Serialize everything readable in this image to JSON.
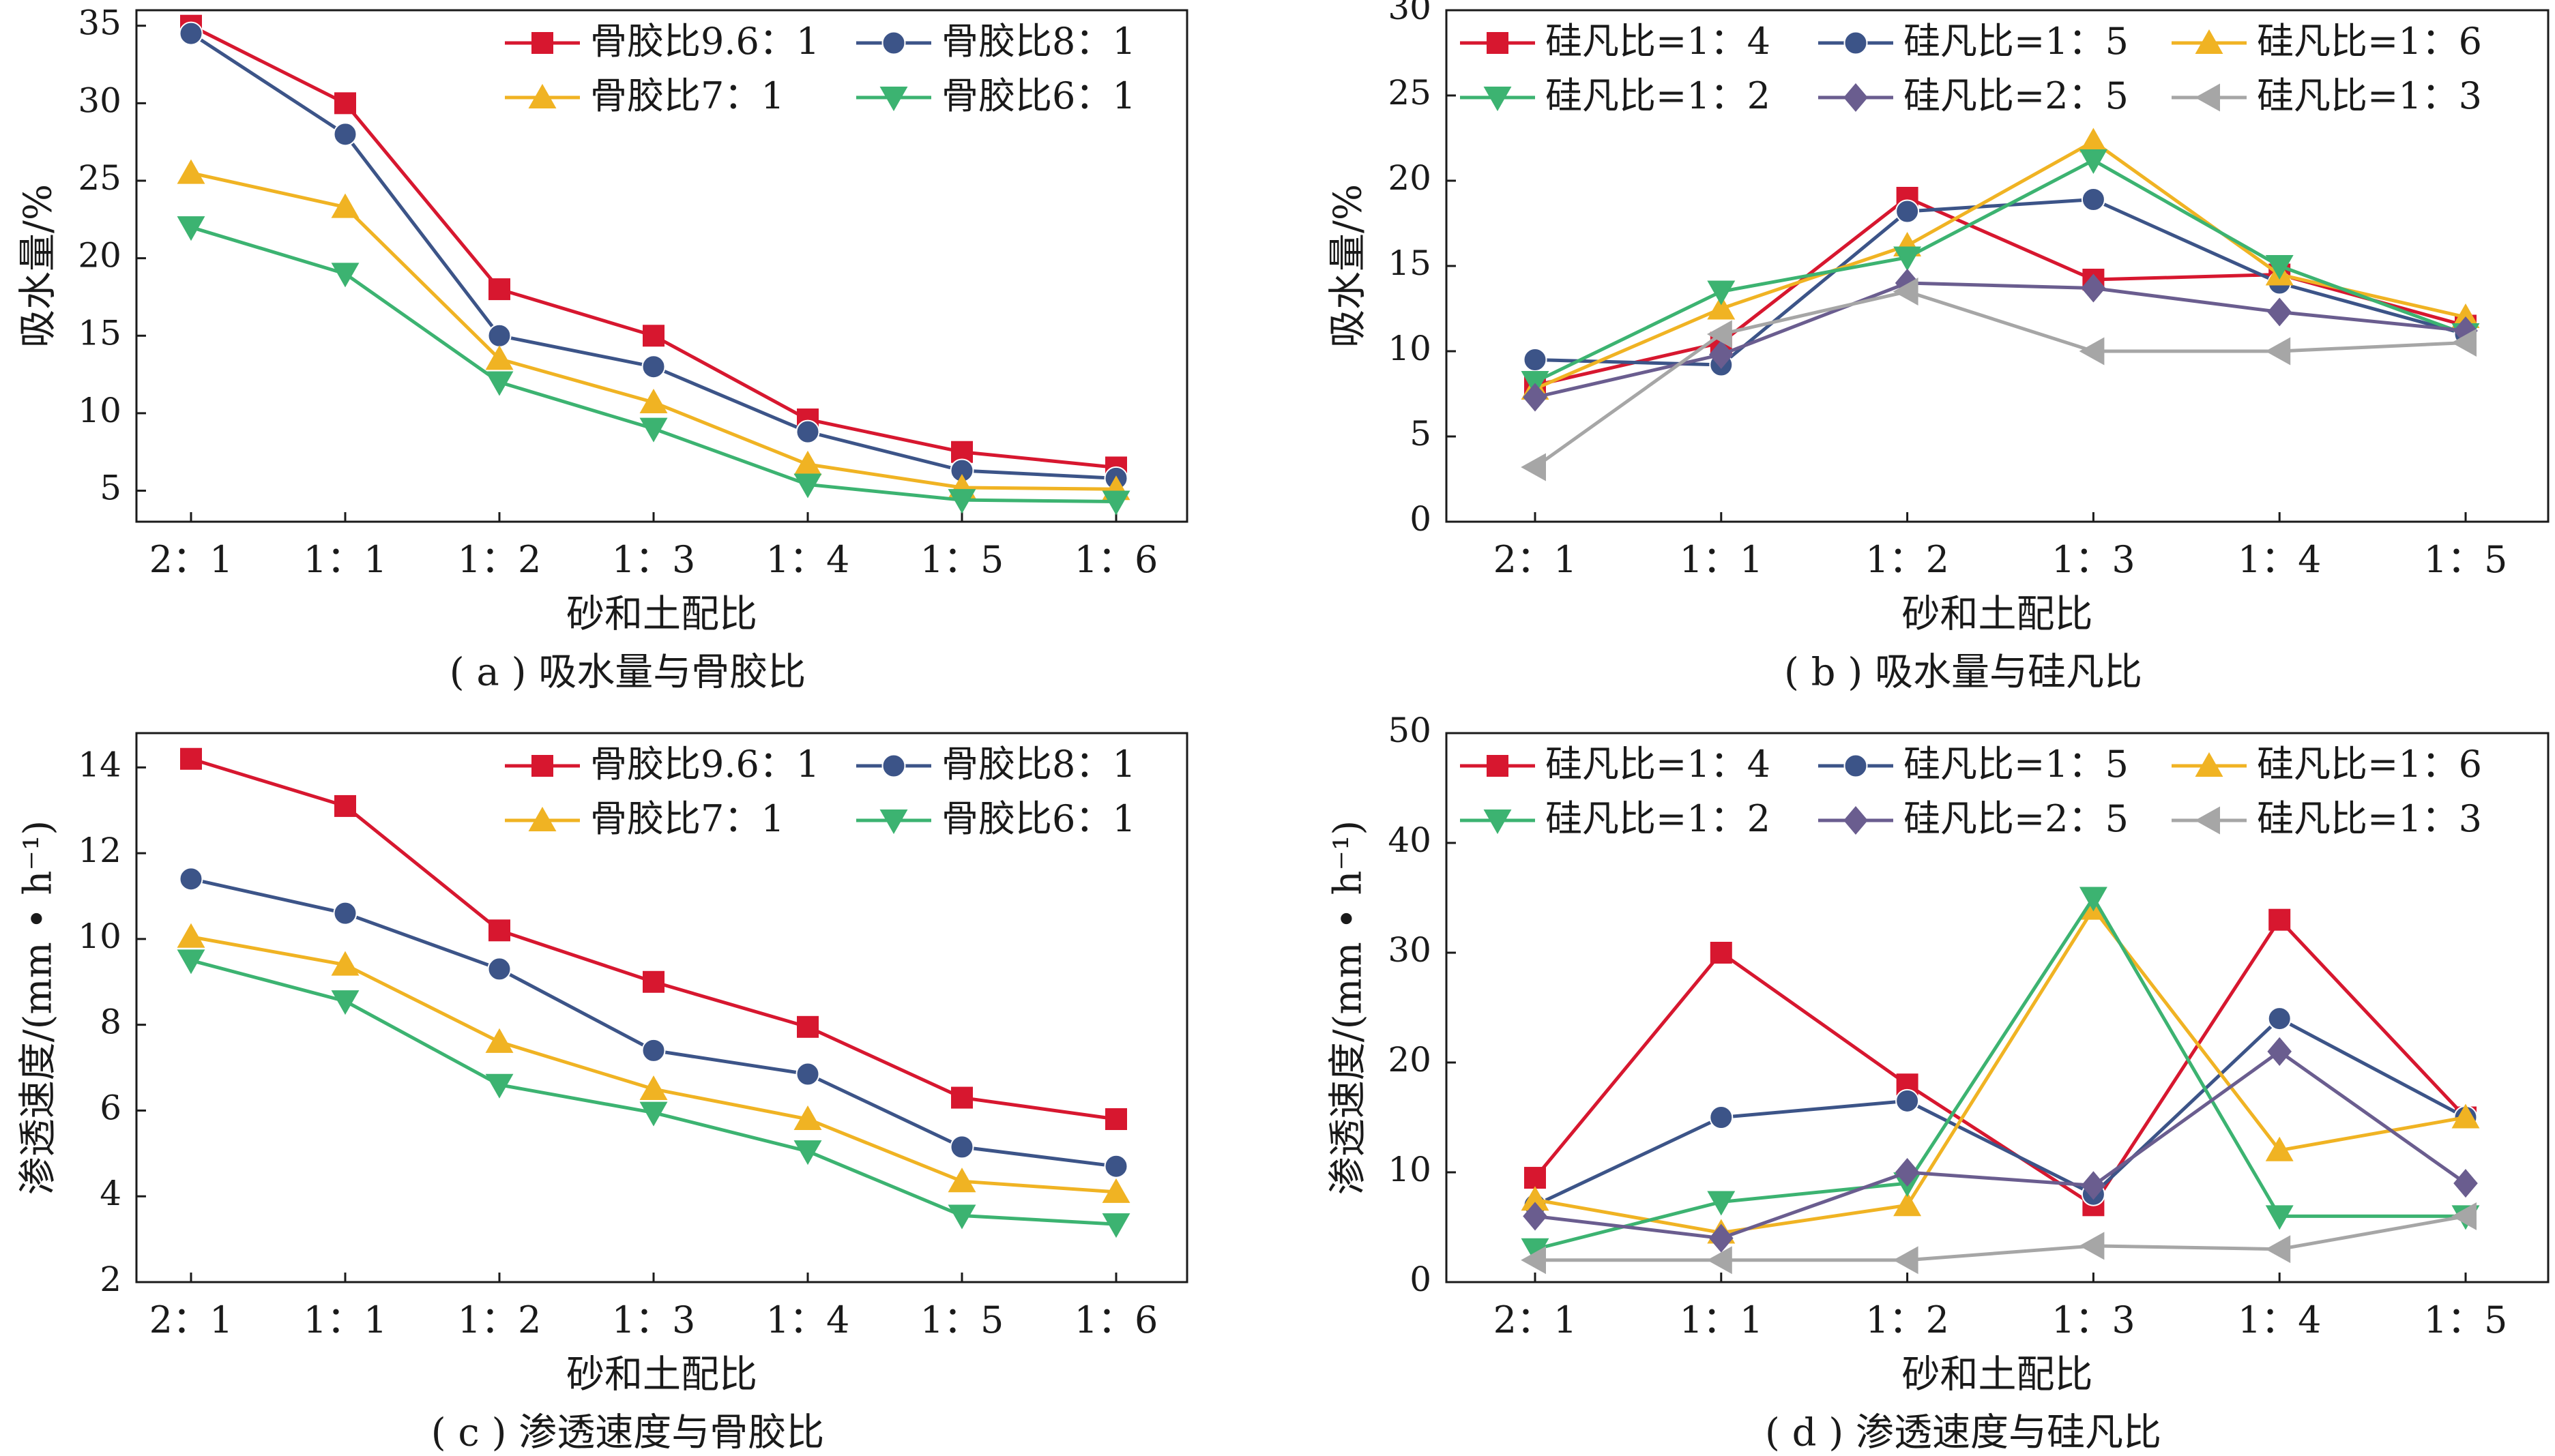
{
  "chart_data": [
    {
      "id": "a",
      "type": "line",
      "caption": "( a ) 吸水量与骨胶比",
      "xlabel": "砂和土配比",
      "ylabel": "吸水量/%",
      "categories": [
        "2：1",
        "1：1",
        "1：2",
        "1：3",
        "1：4",
        "1：5",
        "1：6"
      ],
      "ylim": [
        3,
        36
      ],
      "yticks": [
        5,
        10,
        15,
        20,
        25,
        30,
        35
      ],
      "legend_position": "top-right",
      "legend_cols": 2,
      "series": [
        {
          "name": "骨胶比9.6：1",
          "color": "#d7172f",
          "marker": "square",
          "values": [
            35.0,
            30.0,
            18.0,
            15.0,
            9.6,
            7.5,
            6.5
          ]
        },
        {
          "name": "骨胶比8：1",
          "color": "#3c5488",
          "marker": "circle",
          "values": [
            34.5,
            28.0,
            15.0,
            13.0,
            8.8,
            6.3,
            5.8
          ]
        },
        {
          "name": "骨胶比7：1",
          "color": "#f0b323",
          "marker": "triangle",
          "values": [
            25.5,
            23.3,
            13.5,
            10.7,
            6.7,
            5.2,
            5.1
          ]
        },
        {
          "name": "骨胶比6：1",
          "color": "#3cb371",
          "marker": "triangle-down",
          "values": [
            22.0,
            19.0,
            12.0,
            9.0,
            5.4,
            4.4,
            4.3
          ]
        }
      ]
    },
    {
      "id": "b",
      "type": "line",
      "caption": "( b ) 吸水量与硅凡比",
      "xlabel": "砂和土配比",
      "ylabel": "吸水量/%",
      "categories": [
        "2：1",
        "1：1",
        "1：2",
        "1：3",
        "1：4",
        "1：5"
      ],
      "ylim": [
        0,
        30
      ],
      "yticks": [
        0,
        5,
        10,
        15,
        20,
        25,
        30
      ],
      "legend_position": "top",
      "legend_cols": 3,
      "series": [
        {
          "name": "硅凡比=1：4",
          "color": "#d7172f",
          "marker": "square",
          "values": [
            8.0,
            10.5,
            19.0,
            14.2,
            14.5,
            11.5
          ]
        },
        {
          "name": "硅凡比=1：5",
          "color": "#3c5488",
          "marker": "circle",
          "values": [
            9.5,
            9.2,
            18.2,
            18.9,
            14.0,
            11.0
          ]
        },
        {
          "name": "硅凡比=1：6",
          "color": "#f0b323",
          "marker": "triangle",
          "values": [
            7.8,
            12.5,
            16.2,
            22.3,
            14.5,
            12.0
          ]
        },
        {
          "name": "硅凡比=1：2",
          "color": "#3cb371",
          "marker": "triangle-down",
          "values": [
            8.2,
            13.5,
            15.5,
            21.2,
            15.0,
            11.0
          ]
        },
        {
          "name": "硅凡比=2：5",
          "color": "#6a5d8f",
          "marker": "diamond",
          "values": [
            7.3,
            9.8,
            14.0,
            13.7,
            12.3,
            11.2
          ]
        },
        {
          "name": "硅凡比=1：3",
          "color": "#a6a6a6",
          "marker": "triangle-left",
          "values": [
            3.2,
            11.0,
            13.5,
            10.0,
            10.0,
            10.5
          ]
        }
      ]
    },
    {
      "id": "c",
      "type": "line",
      "caption": "( c ) 渗透速度与骨胶比",
      "xlabel": "砂和土配比",
      "ylabel": "渗透速度/(mm • h⁻¹)",
      "categories": [
        "2：1",
        "1：1",
        "1：2",
        "1：3",
        "1：4",
        "1：5",
        "1：6"
      ],
      "ylim": [
        2,
        14.8
      ],
      "yticks": [
        2,
        4,
        6,
        8,
        10,
        12,
        14
      ],
      "legend_position": "top-right",
      "legend_cols": 2,
      "series": [
        {
          "name": "骨胶比9.6：1",
          "color": "#d7172f",
          "marker": "square",
          "values": [
            14.2,
            13.1,
            10.2,
            9.0,
            7.95,
            6.3,
            5.8
          ]
        },
        {
          "name": "骨胶比8：1",
          "color": "#3c5488",
          "marker": "circle",
          "values": [
            11.4,
            10.6,
            9.3,
            7.4,
            6.85,
            5.15,
            4.7
          ]
        },
        {
          "name": "骨胶比7：1",
          "color": "#f0b323",
          "marker": "triangle",
          "values": [
            10.05,
            9.4,
            7.6,
            6.5,
            5.8,
            4.35,
            4.1
          ]
        },
        {
          "name": "骨胶比6：1",
          "color": "#3cb371",
          "marker": "triangle-down",
          "values": [
            9.5,
            8.55,
            6.6,
            5.95,
            5.05,
            3.55,
            3.35
          ]
        }
      ]
    },
    {
      "id": "d",
      "type": "line",
      "caption": "( d ) 渗透速度与硅凡比",
      "xlabel": "砂和土配比",
      "ylabel": "渗透速度/(mm • h⁻¹)",
      "categories": [
        "2：1",
        "1：1",
        "1：2",
        "1：3",
        "1：4",
        "1：5"
      ],
      "ylim": [
        0,
        50
      ],
      "yticks": [
        0,
        10,
        20,
        30,
        40,
        50
      ],
      "legend_position": "top",
      "legend_cols": 3,
      "series": [
        {
          "name": "硅凡比=1：4",
          "color": "#d7172f",
          "marker": "square",
          "values": [
            9.5,
            30.0,
            18.0,
            7.0,
            33.0,
            15.0
          ]
        },
        {
          "name": "硅凡比=1：5",
          "color": "#3c5488",
          "marker": "circle",
          "values": [
            7.0,
            15.0,
            16.5,
            8.0,
            24.0,
            15.0
          ]
        },
        {
          "name": "硅凡比=1：6",
          "color": "#f0b323",
          "marker": "triangle",
          "values": [
            7.5,
            4.5,
            7.0,
            34.0,
            12.0,
            15.0
          ]
        },
        {
          "name": "硅凡比=1：2",
          "color": "#3cb371",
          "marker": "triangle-down",
          "values": [
            3.0,
            7.3,
            9.0,
            35.0,
            6.0,
            6.0
          ]
        },
        {
          "name": "硅凡比=2：5",
          "color": "#6a5d8f",
          "marker": "diamond",
          "values": [
            6.0,
            4.0,
            10.0,
            8.8,
            21.0,
            9.0
          ]
        },
        {
          "name": "硅凡比=1：3",
          "color": "#a6a6a6",
          "marker": "triangle-left",
          "values": [
            2.0,
            2.0,
            2.0,
            3.3,
            3.0,
            6.0
          ]
        }
      ]
    }
  ]
}
